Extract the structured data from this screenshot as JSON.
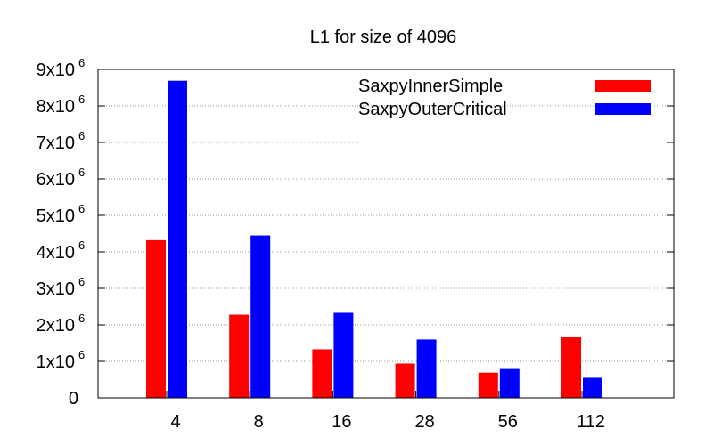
{
  "chart_data": {
    "type": "bar",
    "title": "L1 for size of 4096",
    "xlabel": "",
    "ylabel": "",
    "categories": [
      "4",
      "8",
      "16",
      "28",
      "56",
      "112"
    ],
    "series": [
      {
        "name": "SaxpyInnerSimple",
        "color": "#ff0000",
        "values": [
          4320000,
          2280000,
          1330000,
          940000,
          690000,
          1660000
        ]
      },
      {
        "name": "SaxpyOuterCritical",
        "color": "#0000ff",
        "values": [
          8690000,
          4450000,
          2330000,
          1600000,
          790000,
          550000
        ]
      }
    ],
    "ylim": [
      0,
      9000000
    ],
    "y_ticks": [
      {
        "value": 0,
        "label": "0",
        "exp": ""
      },
      {
        "value": 1000000,
        "label": "1x10",
        "exp": "6"
      },
      {
        "value": 2000000,
        "label": "2x10",
        "exp": "6"
      },
      {
        "value": 3000000,
        "label": "3x10",
        "exp": "6"
      },
      {
        "value": 4000000,
        "label": "4x10",
        "exp": "6"
      },
      {
        "value": 5000000,
        "label": "5x10",
        "exp": "6"
      },
      {
        "value": 6000000,
        "label": "6x10",
        "exp": "6"
      },
      {
        "value": 7000000,
        "label": "7x10",
        "exp": "6"
      },
      {
        "value": 8000000,
        "label": "8x10",
        "exp": "6"
      },
      {
        "value": 9000000,
        "label": "9x10",
        "exp": "6"
      }
    ],
    "grid": true,
    "legend_position": "top-right"
  }
}
